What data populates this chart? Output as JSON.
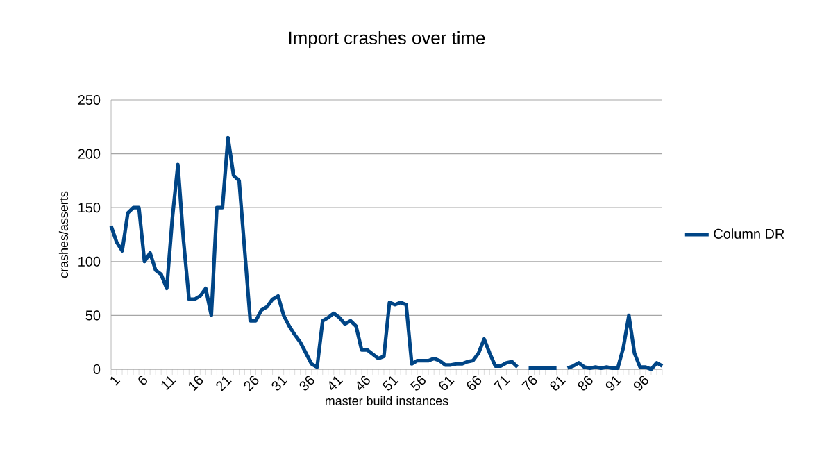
{
  "chart_data": {
    "type": "line",
    "title": "Import crashes over time",
    "xlabel": "master build instances",
    "ylabel": "crashes/asserts",
    "categories": [
      "1",
      null,
      null,
      null,
      null,
      "6",
      null,
      null,
      null,
      null,
      "11",
      null,
      null,
      null,
      null,
      "16",
      null,
      null,
      null,
      null,
      "21",
      null,
      null,
      null,
      null,
      "26",
      null,
      null,
      null,
      null,
      "31",
      null,
      null,
      null,
      null,
      "36",
      null,
      null,
      null,
      null,
      "41",
      null,
      null,
      null,
      null,
      "46",
      null,
      null,
      null,
      null,
      "51",
      null,
      null,
      null,
      null,
      "56",
      null,
      null,
      null,
      null,
      "61",
      null,
      null,
      null,
      null,
      "66",
      null,
      null,
      null,
      null,
      "71",
      null,
      null,
      null,
      null,
      "76",
      null,
      null,
      null,
      null,
      "81",
      null,
      null,
      null,
      null,
      "86",
      null,
      null,
      null,
      null,
      "91",
      null,
      null,
      null,
      null,
      "96",
      null,
      null,
      null,
      null
    ],
    "series": [
      {
        "name": "Column DR",
        "color": "#004586",
        "values": [
          133,
          118,
          110,
          145,
          150,
          150,
          100,
          108,
          92,
          88,
          75,
          140,
          190,
          120,
          65,
          65,
          68,
          75,
          50,
          150,
          150,
          215,
          180,
          175,
          110,
          45,
          45,
          55,
          58,
          65,
          68,
          50,
          40,
          32,
          25,
          15,
          5,
          2,
          45,
          48,
          52,
          48,
          42,
          45,
          40,
          18,
          18,
          14,
          10,
          12,
          62,
          60,
          62,
          60,
          5,
          8,
          8,
          8,
          10,
          8,
          4,
          4,
          5,
          5,
          7,
          8,
          15,
          28,
          15,
          3,
          3,
          6,
          7,
          2,
          null,
          1,
          1,
          1,
          1,
          1,
          1,
          null,
          1,
          3,
          6,
          2,
          1,
          2,
          1,
          2,
          1,
          1,
          20,
          50,
          15,
          2,
          2,
          0,
          6,
          3
        ]
      }
    ],
    "ylim": [
      0,
      250
    ],
    "yticks": [
      0,
      50,
      100,
      150,
      200,
      250
    ],
    "grid": "y",
    "legend": "right",
    "line_style": "solid",
    "marker": "none"
  }
}
